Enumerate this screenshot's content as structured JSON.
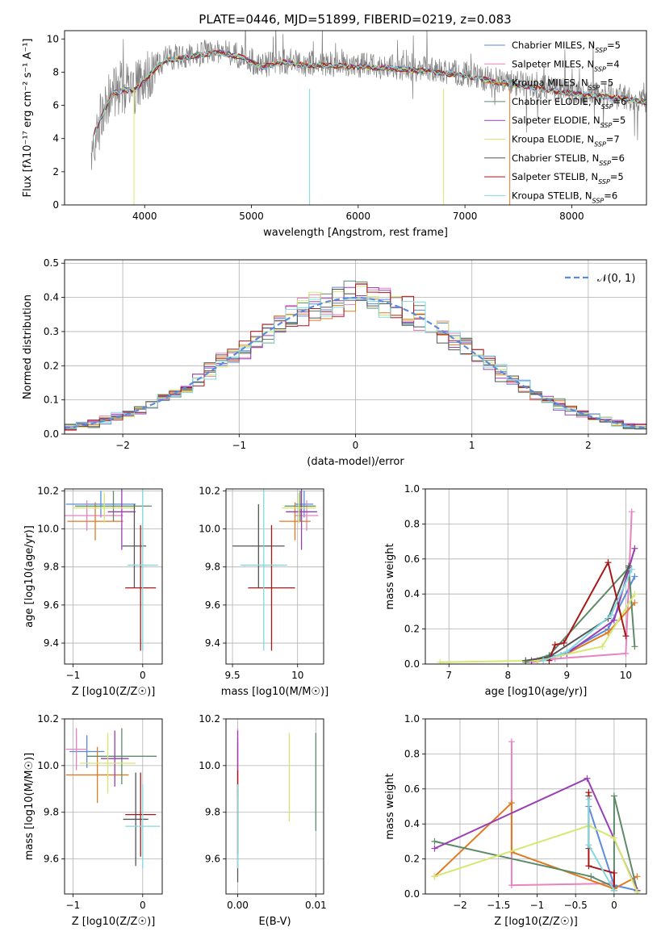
{
  "page_title": "PLATE=0446, MJD=51899, FIBERID=0219, z=0.083",
  "colors": {
    "Chabrier MILES": "#5b8bdc",
    "Salpeter MILES": "#e882c0",
    "Kroupa MILES": "#e07a22",
    "Chabrier ELODIE": "#5e8a6a",
    "Salpeter ELODIE": "#9a3fb4",
    "Kroupa ELODIE": "#d4e870",
    "Chabrier STELIB": "#555555",
    "Salpeter STELIB": "#a81818",
    "Kroupa STELIB": "#80d8e0"
  },
  "chart_data": [
    {
      "id": "spectrum",
      "type": "line",
      "title": "PLATE=0446, MJD=51899, FIBERID=0219, z=0.083",
      "xlabel": "wavelength [Angstrom, rest frame]",
      "ylabel": "Flux [fλ10⁻¹⁷ erg cm⁻² s⁻¹ A⁻¹]",
      "xlim": [
        3250,
        8700
      ],
      "ylim": [
        0,
        10.5
      ],
      "xticks": [
        4000,
        5000,
        6000,
        7000,
        8000
      ],
      "yticks": [
        0,
        2,
        4,
        6,
        8,
        10
      ],
      "legend_position": "right",
      "legend": [
        "Chabrier MILES, NSSP=5",
        "Salpeter MILES, NSSP=4",
        "Kroupa MILES, NSSP=5",
        "Chabrier ELODIE, NSSP=6",
        "Salpeter ELODIE, NSSP=5",
        "Kroupa ELODIE, NSSP=7",
        "Chabrier STELIB, NSSP=6",
        "Salpeter STELIB, NSSP=5",
        "Kroupa STELIB, NSSP=6"
      ],
      "legend_series": [
        "Chabrier MILES",
        "Salpeter MILES",
        "Kroupa MILES",
        "Chabrier ELODIE",
        "Salpeter ELODIE",
        "Kroupa ELODIE",
        "Chabrier STELIB",
        "Salpeter STELIB",
        "Kroupa STELIB"
      ],
      "continuum_x": [
        3500,
        3600,
        3700,
        3800,
        3900,
        4000,
        4100,
        4200,
        4300,
        4400,
        4500,
        4700,
        4900,
        5100,
        5300,
        5500,
        5800,
        6100,
        6400,
        6700,
        7000,
        7300,
        7600,
        7900,
        8200,
        8500,
        8700
      ],
      "continuum_y": [
        4.0,
        5.5,
        6.8,
        7.0,
        7.0,
        7.6,
        8.3,
        8.8,
        8.9,
        9.0,
        9.1,
        9.3,
        9.0,
        8.4,
        8.7,
        8.5,
        8.5,
        8.4,
        8.3,
        8.1,
        7.9,
        7.5,
        7.2,
        6.9,
        6.7,
        6.5,
        6.3
      ]
    },
    {
      "id": "residual-histogram",
      "type": "bar",
      "xlabel": "(data-model)/error",
      "ylabel": "Normed distribution",
      "xlim": [
        -2.5,
        2.5
      ],
      "ylim": [
        0,
        0.51
      ],
      "xticks": [
        -2,
        -1,
        0,
        1,
        2
      ],
      "yticks": [
        0.0,
        0.1,
        0.2,
        0.3,
        0.4,
        0.5
      ],
      "legend": [
        "𝒩(0, 1)"
      ],
      "legend_position": "top-right",
      "gaussian": {
        "mean": 0,
        "sigma": 1,
        "color": "#5b8bdc"
      },
      "bin_width": 0.1,
      "bin_start": -2.5
    },
    {
      "id": "age-vs-metallicity",
      "type": "scatter",
      "xlabel": "Z [log10(Z/Z☉)]",
      "ylabel": "age  [log10(age/yr)]",
      "xlim": [
        -1.12,
        0.28
      ],
      "ylim": [
        9.29,
        10.21
      ],
      "xticks": [
        -1,
        0
      ],
      "yticks": [
        9.4,
        9.6,
        9.8,
        10.0,
        10.2
      ],
      "points": [
        {
          "series": "Chabrier MILES",
          "x": -0.6,
          "xerr": 0.5,
          "y": 10.13,
          "yerr": 0.07
        },
        {
          "series": "Salpeter MILES",
          "x": -0.8,
          "xerr": 0.52,
          "y": 10.07,
          "yerr": 0.08
        },
        {
          "series": "Kroupa MILES",
          "x": -0.68,
          "xerr": 0.4,
          "y": 10.04,
          "yerr": 0.1
        },
        {
          "series": "Chabrier ELODIE",
          "x": -0.42,
          "xerr": 0.55,
          "y": 10.12,
          "yerr": 0.08
        },
        {
          "series": "Salpeter ELODIE",
          "x": -0.3,
          "xerr": 0.2,
          "y": 10.09,
          "yerr": 0.2
        },
        {
          "series": "Kroupa ELODIE",
          "x": -0.55,
          "xerr": 0.45,
          "y": 10.11,
          "yerr": 0.08
        },
        {
          "series": "Chabrier STELIB",
          "x": -0.12,
          "xerr": 0.17,
          "y": 9.91,
          "yerr": 0.22
        },
        {
          "series": "Salpeter STELIB",
          "x": -0.03,
          "xerr": 0.22,
          "y": 9.69,
          "yerr": 0.33
        },
        {
          "series": "Kroupa STELIB",
          "x": 0.0,
          "xerr": 0.22,
          "y": 9.81,
          "yerr": 0.45
        }
      ]
    },
    {
      "id": "age-vs-mass",
      "type": "scatter",
      "xlabel": "mass [log10(M/M☉)]",
      "ylabel": "",
      "xlim": [
        9.45,
        10.2
      ],
      "ylim": [
        9.29,
        10.21
      ],
      "xticks": [
        9.5,
        10.0
      ],
      "yticks": [
        9.4,
        9.6,
        9.8,
        10.0,
        10.2
      ],
      "points": [
        {
          "series": "Chabrier MILES",
          "x": 10.05,
          "xerr": 0.07,
          "y": 10.13,
          "yerr": 0.07
        },
        {
          "series": "Salpeter MILES",
          "x": 10.07,
          "xerr": 0.09,
          "y": 10.07,
          "yerr": 0.08
        },
        {
          "series": "Kroupa MILES",
          "x": 9.98,
          "xerr": 0.12,
          "y": 10.04,
          "yerr": 0.1
        },
        {
          "series": "Chabrier ELODIE",
          "x": 10.02,
          "xerr": 0.12,
          "y": 10.12,
          "yerr": 0.08
        },
        {
          "series": "Salpeter ELODIE",
          "x": 10.03,
          "xerr": 0.12,
          "y": 10.09,
          "yerr": 0.2
        },
        {
          "series": "Kroupa ELODIE",
          "x": 10.01,
          "xerr": 0.13,
          "y": 10.11,
          "yerr": 0.08
        },
        {
          "series": "Chabrier STELIB",
          "x": 9.7,
          "xerr": 0.2,
          "y": 9.91,
          "yerr": 0.22
        },
        {
          "series": "Salpeter STELIB",
          "x": 9.8,
          "xerr": 0.18,
          "y": 9.69,
          "yerr": 0.33
        },
        {
          "series": "Kroupa STELIB",
          "x": 9.74,
          "xerr": 0.18,
          "y": 9.81,
          "yerr": 0.45
        }
      ]
    },
    {
      "id": "mass-weight-vs-age",
      "type": "line",
      "xlabel": "age  [log10(age/yr)]",
      "ylabel": "mass weight",
      "xlim": [
        6.6,
        10.35
      ],
      "ylim": [
        0,
        1
      ],
      "xticks": [
        7,
        8,
        9,
        10
      ],
      "yticks": [
        0.0,
        0.2,
        0.4,
        0.6,
        0.8,
        1.0
      ],
      "series": [
        {
          "name": "Chabrier MILES",
          "x": [
            8.5,
            8.9,
            9.7,
            10.15
          ],
          "y": [
            0.02,
            0.05,
            0.2,
            0.5
          ]
        },
        {
          "name": "Salpeter MILES",
          "x": [
            8.4,
            8.8,
            10.0,
            10.1
          ],
          "y": [
            0.01,
            0.03,
            0.06,
            0.87
          ]
        },
        {
          "name": "Kroupa MILES",
          "x": [
            8.5,
            9.0,
            9.7,
            10.15
          ],
          "y": [
            0.02,
            0.06,
            0.18,
            0.35
          ]
        },
        {
          "name": "Chabrier ELODIE",
          "x": [
            8.3,
            8.7,
            10.05,
            10.15
          ],
          "y": [
            0.01,
            0.05,
            0.55,
            0.1
          ]
        },
        {
          "name": "Salpeter ELODIE",
          "x": [
            8.4,
            9.0,
            9.8,
            10.15
          ],
          "y": [
            0.02,
            0.06,
            0.25,
            0.66
          ]
        },
        {
          "name": "Kroupa ELODIE",
          "x": [
            6.85,
            8.5,
            9.6,
            10.15
          ],
          "y": [
            0.01,
            0.02,
            0.1,
            0.4
          ]
        },
        {
          "name": "Chabrier STELIB",
          "x": [
            8.3,
            8.7,
            9.7,
            10.05
          ],
          "y": [
            0.02,
            0.04,
            0.26,
            0.56
          ]
        },
        {
          "name": "Salpeter STELIB",
          "x": [
            8.7,
            8.8,
            8.95,
            9.7,
            10.0
          ],
          "y": [
            0.02,
            0.11,
            0.12,
            0.58,
            0.16
          ]
        },
        {
          "name": "Kroupa STELIB",
          "x": [
            8.6,
            9.0,
            9.75,
            10.1
          ],
          "y": [
            0.02,
            0.07,
            0.28,
            0.54
          ]
        }
      ]
    },
    {
      "id": "mass-vs-metallicity",
      "type": "scatter",
      "xlabel": "Z [log10(Z/Z☉)]",
      "ylabel": "mass [log10(M/M☉)]",
      "xlim": [
        -1.12,
        0.28
      ],
      "ylim": [
        9.45,
        10.2
      ],
      "xticks": [
        -1,
        0
      ],
      "yticks": [
        9.6,
        9.8,
        10.0,
        10.2
      ],
      "points": [
        {
          "series": "Chabrier MILES",
          "x": -0.8,
          "xerr": 0.25,
          "y": 10.06,
          "yerr": 0.07
        },
        {
          "series": "Salpeter MILES",
          "x": -0.95,
          "xerr": 0.15,
          "y": 10.07,
          "yerr": 0.09
        },
        {
          "series": "Kroupa MILES",
          "x": -0.65,
          "xerr": 0.45,
          "y": 9.96,
          "yerr": 0.12
        },
        {
          "series": "Chabrier ELODIE",
          "x": -0.3,
          "xerr": 0.5,
          "y": 10.04,
          "yerr": 0.12
        },
        {
          "series": "Salpeter ELODIE",
          "x": -0.4,
          "xerr": 0.2,
          "y": 10.03,
          "yerr": 0.12
        },
        {
          "series": "Kroupa ELODIE",
          "x": -0.5,
          "xerr": 0.4,
          "y": 10.01,
          "yerr": 0.13
        },
        {
          "series": "Chabrier STELIB",
          "x": -0.1,
          "xerr": 0.18,
          "y": 9.77,
          "yerr": 0.2
        },
        {
          "series": "Salpeter STELIB",
          "x": -0.03,
          "xerr": 0.22,
          "y": 9.79,
          "yerr": 0.18
        },
        {
          "series": "Kroupa STELIB",
          "x": 0.0,
          "xerr": 0.25,
          "y": 9.74,
          "yerr": 0.18
        }
      ]
    },
    {
      "id": "mass-vs-extinction",
      "type": "scatter",
      "xlabel": "E(B-V)",
      "ylabel": "",
      "xlim": [
        -0.0015,
        0.011
      ],
      "ylim": [
        9.45,
        10.2
      ],
      "xticks": [
        0.0,
        0.01
      ],
      "xticklabels": [
        "0.00",
        "0.01"
      ],
      "yticks": [
        9.6,
        9.8,
        10.0,
        10.2
      ],
      "points": [
        {
          "series": "Chabrier MILES",
          "x": 0.0,
          "y": 10.05,
          "yerr": 0.07
        },
        {
          "series": "Salpeter MILES",
          "x": 0.0,
          "y": 10.07,
          "yerr": 0.09
        },
        {
          "series": "Kroupa MILES",
          "x": 0.0,
          "y": 9.98,
          "yerr": 0.12
        },
        {
          "series": "Chabrier ELODIE",
          "x": 0.01,
          "y": 9.93,
          "yerr": 0.21
        },
        {
          "series": "Salpeter ELODIE",
          "x": 0.0,
          "y": 10.03,
          "yerr": 0.12
        },
        {
          "series": "Kroupa ELODIE",
          "x": 0.0066,
          "y": 9.95,
          "yerr": 0.19
        },
        {
          "series": "Chabrier STELIB",
          "x": 0.0,
          "y": 9.7,
          "yerr": 0.2
        },
        {
          "series": "Salpeter STELIB",
          "x": 0.0,
          "y": 9.8,
          "yerr": 0.18
        },
        {
          "series": "Kroupa STELIB",
          "x": 0.0,
          "y": 9.74,
          "yerr": 0.18
        }
      ]
    },
    {
      "id": "mass-weight-vs-metallicity",
      "type": "line",
      "xlabel": "Z [log10(Z/Z☉)]",
      "ylabel": "mass weight",
      "xlim": [
        -2.45,
        0.42
      ],
      "ylim": [
        0,
        1
      ],
      "xticks": [
        -2.0,
        -1.5,
        -1.0,
        -0.5,
        0.0
      ],
      "yticks": [
        0.0,
        0.2,
        0.4,
        0.6,
        0.8,
        1.0
      ],
      "series": [
        {
          "name": "Chabrier MILES",
          "x": [
            -0.33,
            0.0,
            0.3
          ],
          "y": [
            0.5,
            0.05,
            0.02
          ]
        },
        {
          "name": "Salpeter MILES",
          "x": [
            -1.33,
            -1.33,
            -0.04,
            0.0
          ],
          "y": [
            0.87,
            0.05,
            0.06,
            0.02
          ]
        },
        {
          "name": "Kroupa MILES",
          "x": [
            -2.33,
            -1.33,
            -1.33,
            0.0,
            0.3
          ],
          "y": [
            0.1,
            0.52,
            0.24,
            0.03,
            0.1
          ]
        },
        {
          "name": "Chabrier ELODIE",
          "x": [
            -2.33,
            -0.3,
            0.0,
            0.0,
            0.3
          ],
          "y": [
            0.3,
            0.1,
            0.04,
            0.56,
            0.02
          ]
        },
        {
          "name": "Salpeter ELODIE",
          "x": [
            -2.33,
            -0.35,
            0.3
          ],
          "y": [
            0.26,
            0.66,
            0.02
          ]
        },
        {
          "name": "Kroupa ELODIE",
          "x": [
            -2.33,
            -0.33,
            0.0,
            0.3
          ],
          "y": [
            0.1,
            0.39,
            0.32,
            0.01
          ]
        },
        {
          "name": "Chabrier STELIB",
          "x": [
            -0.33,
            -0.33
          ],
          "y": [
            0.56,
            0.26
          ]
        },
        {
          "name": "Salpeter STELIB",
          "x": [
            -0.33,
            -0.33,
            0.0,
            0.0
          ],
          "y": [
            0.58,
            0.16,
            0.12,
            0.02
          ]
        },
        {
          "name": "Kroupa STELIB",
          "x": [
            -0.33,
            -0.33,
            0.0
          ],
          "y": [
            0.54,
            0.28,
            0.02
          ]
        }
      ]
    }
  ]
}
